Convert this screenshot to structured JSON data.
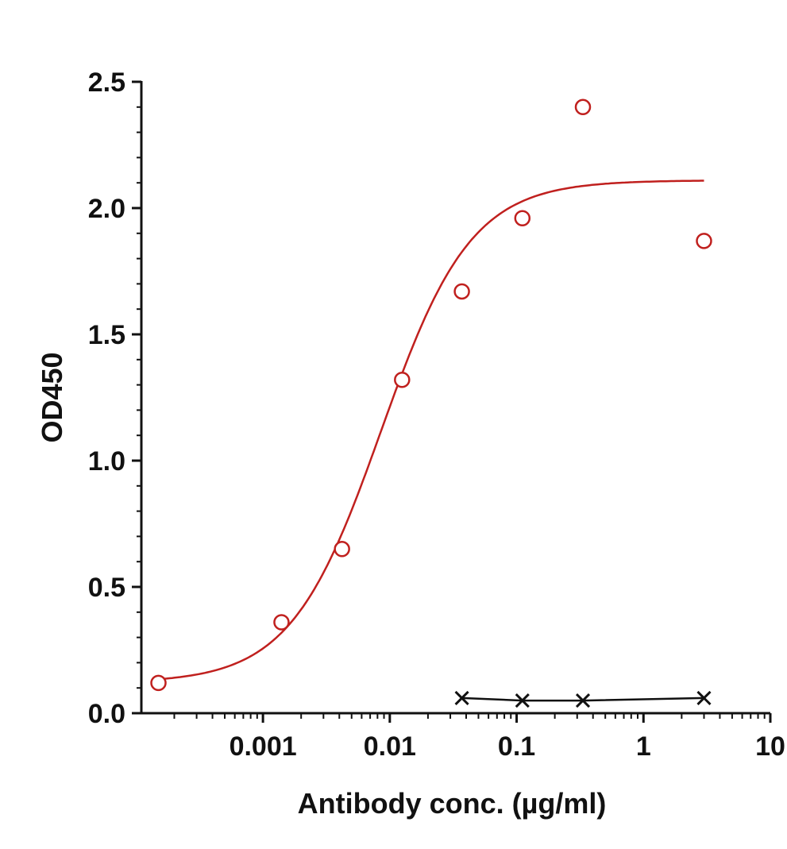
{
  "chart_data": {
    "type": "scatter",
    "xlabel": "Antibody conc. (µg/ml)",
    "ylabel": "OD450",
    "x_scale": "log",
    "xlim": [
      0.00011,
      10
    ],
    "ylim": [
      0,
      2.5
    ],
    "x_ticks": [
      0.001,
      0.01,
      0.1,
      1,
      10
    ],
    "x_tick_labels": [
      "0.001",
      "0.01",
      "0.1",
      "1",
      "10"
    ],
    "y_ticks": [
      0,
      0.5,
      1,
      1.5,
      2,
      2.5
    ],
    "y_tick_labels": [
      "0.0",
      "0.5",
      "1.0",
      "1.5",
      "2.0",
      "2.5"
    ],
    "grid": false,
    "legend": "none",
    "series": [
      {
        "marker": "open-circle",
        "color": "#c0201e",
        "points": [
          {
            "x": 0.00015,
            "y": 0.12
          },
          {
            "x": 0.0014,
            "y": 0.36
          },
          {
            "x": 0.0042,
            "y": 0.65
          },
          {
            "x": 0.0125,
            "y": 1.32
          },
          {
            "x": 0.037,
            "y": 1.67
          },
          {
            "x": 0.111,
            "y": 1.96
          },
          {
            "x": 0.333,
            "y": 2.4
          },
          {
            "x": 3.0,
            "y": 1.87
          }
        ],
        "fit": {
          "model": "4PL",
          "bottom": 0.12,
          "top": 2.11,
          "ec50": 0.0085,
          "hill": 1.22,
          "x_range": [
            0.00015,
            3.0
          ]
        }
      },
      {
        "marker": "x",
        "color": "#111111",
        "line": true,
        "points": [
          {
            "x": 0.037,
            "y": 0.06
          },
          {
            "x": 0.111,
            "y": 0.05
          },
          {
            "x": 0.333,
            "y": 0.05
          },
          {
            "x": 3.0,
            "y": 0.06
          }
        ]
      }
    ]
  }
}
